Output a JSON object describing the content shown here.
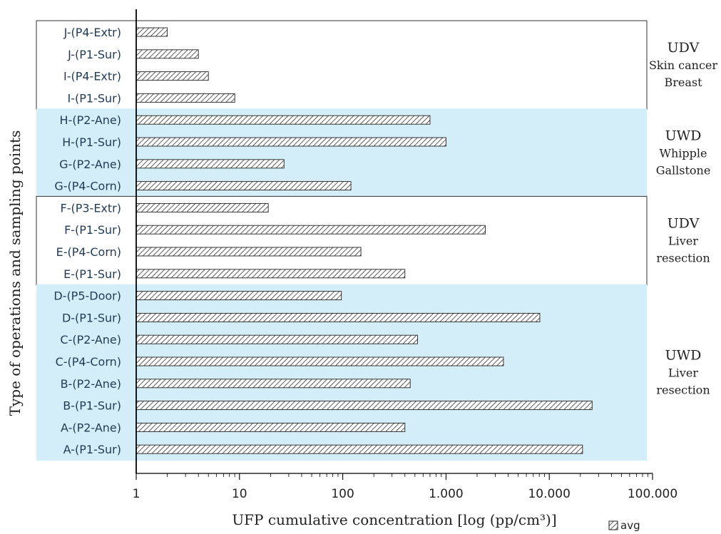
{
  "chart_data": {
    "type": "bar",
    "orientation": "horizontal",
    "xscale": "log",
    "xlim": [
      1,
      100000
    ],
    "xticks": [
      "1",
      "10",
      "100",
      "1.000",
      "10.000",
      "100.000"
    ],
    "xlabel": "UFP cumulative concentration [log (pp/cm³)]",
    "ylabel": "Type of operations and sampling points",
    "legend": {
      "label": "avg",
      "placement": "bottom-right"
    },
    "categories": [
      "J-(P4-Extr)",
      "J-(P1-Sur)",
      "I-(P4-Extr)",
      "I-(P1-Sur)",
      "H-(P2-Ane)",
      "H-(P1-Sur)",
      "G-(P2-Ane)",
      "G-(P4-Corn)",
      "F-(P3-Extr)",
      "F-(P1-Sur)",
      "E-(P4-Corn)",
      "E-(P1-Sur)",
      "D-(P5-Door)",
      "D-(P1-Sur)",
      "C-(P2-Ane)",
      "C-(P4-Corn)",
      "B-(P2-Ane)",
      "B-(P1-Sur)",
      "A-(P2-Ane)",
      "A-(P1-Sur)"
    ],
    "series": [
      {
        "name": "avg",
        "values": [
          2,
          4,
          5,
          9,
          700,
          1000,
          27,
          120,
          19,
          2400,
          150,
          400,
          97,
          8100,
          530,
          3600,
          450,
          26000,
          400,
          21000
        ]
      }
    ],
    "groups": [
      {
        "lines": [
          "UDV",
          "Skin cancer",
          "Breast"
        ],
        "first": 0,
        "last": 3,
        "shaded": false
      },
      {
        "lines": [
          "UWD",
          "Whipple",
          "Gallstone"
        ],
        "first": 4,
        "last": 7,
        "shaded": true
      },
      {
        "lines": [
          "UDV",
          "Liver",
          "resection"
        ],
        "first": 8,
        "last": 11,
        "shaded": false
      },
      {
        "lines": [
          "UWD",
          "Liver",
          "resection"
        ],
        "first": 12,
        "last": 19,
        "shaded": true
      }
    ],
    "colors": {
      "shade": "#d3eef8",
      "bar_stroke": "#222222",
      "hatch": "#333333"
    }
  }
}
